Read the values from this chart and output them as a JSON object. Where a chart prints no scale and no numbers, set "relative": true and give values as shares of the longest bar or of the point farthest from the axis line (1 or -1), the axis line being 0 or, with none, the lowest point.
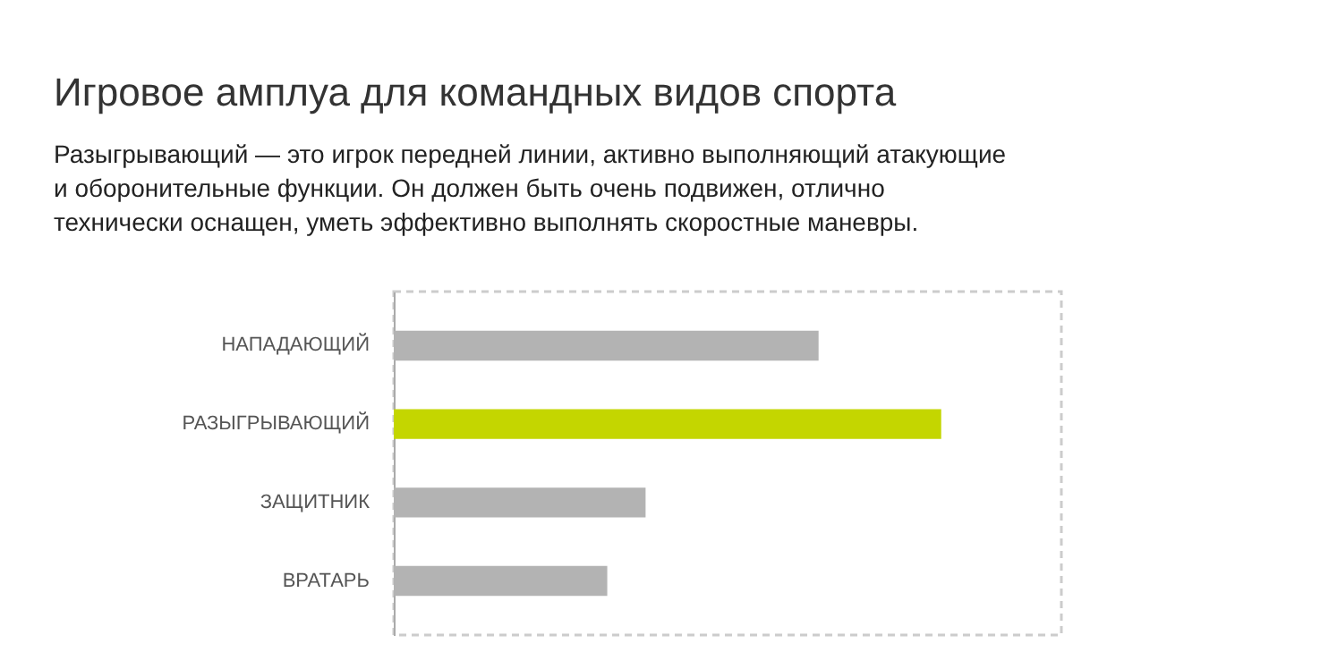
{
  "chart_data": {
    "type": "bar",
    "orientation": "horizontal",
    "relative": true,
    "title": "Игровое амплуа для командных видов спорта",
    "subtitle": "Разыгрывающий — это игрок передней линии, активно выполняющий атакующие\nи оборонительные функции. Он должен быть очень подвижен, отлично\nтехнически оснащен, уметь эффективно выполнять скоростные маневры.",
    "categories": [
      "НАПАДАЮЩИЙ",
      "РАЗЫГРЫВАЮЩИЙ",
      "ЗАЩИТНИК",
      "ВРАТАРЬ"
    ],
    "values": [
      0.776,
      1,
      0.46,
      0.39
    ],
    "colors": [
      "#b3b3b3",
      "#c4d600",
      "#b3b3b3",
      "#b3b3b3"
    ]
  }
}
